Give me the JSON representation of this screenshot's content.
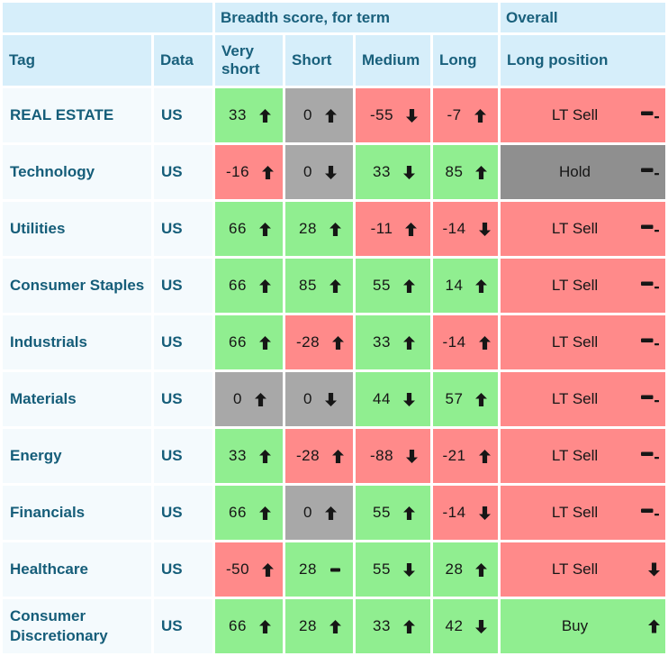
{
  "table": {
    "group_headers": {
      "blank": "",
      "breadth": "Breadth score, for term",
      "overall": "Overall"
    },
    "columns": {
      "tag": "Tag",
      "data": "Data",
      "very_short": "Very short",
      "short": "Short",
      "medium": "Medium",
      "long": "Long",
      "position": "Long position"
    }
  },
  "colors": {
    "green": "#90ee90",
    "red": "#ff8a8a",
    "gray": "#a8a8a8",
    "dark_gray": "#8f8f8f",
    "header_bg": "#d6eefa",
    "header_text": "#19607c",
    "label_bg": "#f4fafd",
    "label_text": "#155d79",
    "separator": "#ffffff"
  },
  "icons": {
    "up": "trend-up-icon",
    "down": "trend-down-icon",
    "flat": "trend-flat-icon",
    "flat_minus": "trend-flat-minus-icon"
  },
  "rows": [
    {
      "tag": "REAL ESTATE",
      "data": "US",
      "very_short": {
        "value": "33",
        "trend": "up",
        "color": "green"
      },
      "short": {
        "value": "0",
        "trend": "up",
        "color": "gray"
      },
      "medium": {
        "value": "-55",
        "trend": "down",
        "color": "red"
      },
      "long": {
        "value": "-7",
        "trend": "up",
        "color": "red"
      },
      "position": {
        "label": "LT Sell",
        "trend": "flat_minus",
        "color": "red"
      }
    },
    {
      "tag": "Technology",
      "data": "US",
      "very_short": {
        "value": "-16",
        "trend": "up",
        "color": "red"
      },
      "short": {
        "value": "0",
        "trend": "down",
        "color": "gray"
      },
      "medium": {
        "value": "33",
        "trend": "down",
        "color": "green"
      },
      "long": {
        "value": "85",
        "trend": "up",
        "color": "green"
      },
      "position": {
        "label": "Hold",
        "trend": "flat_minus",
        "color": "dark_gray"
      }
    },
    {
      "tag": "Utilities",
      "data": "US",
      "very_short": {
        "value": "66",
        "trend": "up",
        "color": "green"
      },
      "short": {
        "value": "28",
        "trend": "up",
        "color": "green"
      },
      "medium": {
        "value": "-11",
        "trend": "up",
        "color": "red"
      },
      "long": {
        "value": "-14",
        "trend": "down",
        "color": "red"
      },
      "position": {
        "label": "LT Sell",
        "trend": "flat_minus",
        "color": "red"
      }
    },
    {
      "tag": "Consumer Staples",
      "data": "US",
      "very_short": {
        "value": "66",
        "trend": "up",
        "color": "green"
      },
      "short": {
        "value": "85",
        "trend": "up",
        "color": "green"
      },
      "medium": {
        "value": "55",
        "trend": "up",
        "color": "green"
      },
      "long": {
        "value": "14",
        "trend": "up",
        "color": "green"
      },
      "position": {
        "label": "LT Sell",
        "trend": "flat_minus",
        "color": "red"
      }
    },
    {
      "tag": "Industrials",
      "data": "US",
      "very_short": {
        "value": "66",
        "trend": "up",
        "color": "green"
      },
      "short": {
        "value": "-28",
        "trend": "up",
        "color": "red"
      },
      "medium": {
        "value": "33",
        "trend": "up",
        "color": "green"
      },
      "long": {
        "value": "-14",
        "trend": "up",
        "color": "red"
      },
      "position": {
        "label": "LT Sell",
        "trend": "flat_minus",
        "color": "red"
      }
    },
    {
      "tag": "Materials",
      "data": "US",
      "very_short": {
        "value": "0",
        "trend": "up",
        "color": "gray"
      },
      "short": {
        "value": "0",
        "trend": "down",
        "color": "gray"
      },
      "medium": {
        "value": "44",
        "trend": "down",
        "color": "green"
      },
      "long": {
        "value": "57",
        "trend": "up",
        "color": "green"
      },
      "position": {
        "label": "LT Sell",
        "trend": "flat_minus",
        "color": "red"
      }
    },
    {
      "tag": "Energy",
      "data": "US",
      "very_short": {
        "value": "33",
        "trend": "up",
        "color": "green"
      },
      "short": {
        "value": "-28",
        "trend": "up",
        "color": "red"
      },
      "medium": {
        "value": "-88",
        "trend": "down",
        "color": "red"
      },
      "long": {
        "value": "-21",
        "trend": "up",
        "color": "red"
      },
      "position": {
        "label": "LT Sell",
        "trend": "flat_minus",
        "color": "red"
      }
    },
    {
      "tag": "Financials",
      "data": "US",
      "very_short": {
        "value": "66",
        "trend": "up",
        "color": "green"
      },
      "short": {
        "value": "0",
        "trend": "up",
        "color": "gray"
      },
      "medium": {
        "value": "55",
        "trend": "up",
        "color": "green"
      },
      "long": {
        "value": "-14",
        "trend": "down",
        "color": "red"
      },
      "position": {
        "label": "LT Sell",
        "trend": "flat_minus",
        "color": "red"
      }
    },
    {
      "tag": "Healthcare",
      "data": "US",
      "very_short": {
        "value": "-50",
        "trend": "up",
        "color": "red"
      },
      "short": {
        "value": "28",
        "trend": "flat",
        "color": "green"
      },
      "medium": {
        "value": "55",
        "trend": "down",
        "color": "green"
      },
      "long": {
        "value": "28",
        "trend": "up",
        "color": "green"
      },
      "position": {
        "label": "LT Sell",
        "trend": "down",
        "color": "red"
      }
    },
    {
      "tag": "Consumer Discretionary",
      "data": "US",
      "very_short": {
        "value": "66",
        "trend": "up",
        "color": "green"
      },
      "short": {
        "value": "28",
        "trend": "up",
        "color": "green"
      },
      "medium": {
        "value": "33",
        "trend": "up",
        "color": "green"
      },
      "long": {
        "value": "42",
        "trend": "down",
        "color": "green"
      },
      "position": {
        "label": "Buy",
        "trend": "up",
        "color": "green"
      }
    }
  ]
}
